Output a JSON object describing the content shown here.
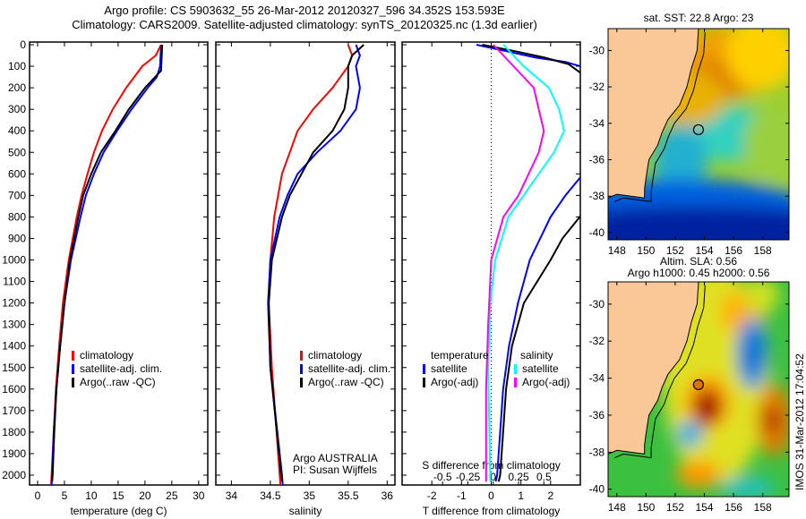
{
  "title_line1": "Argo profile: CS 5903632_55 26-Mar-2012 20120327_596 34.352S 153.593E",
  "title_line2": "Climatology: CARS2009. Satellite-adjusted climatology: synTS_20120325.nc (1.3d earlier)",
  "footer_stamp": "IMOS 31-Mar-2012 17:04:52",
  "chart_data": [
    {
      "type": "line",
      "id": "temperature",
      "xlabel": "temperature (deg C)",
      "ylabel": "",
      "xlim": [
        -1.5,
        31.7
      ],
      "ylim": [
        2050,
        0
      ],
      "xticks": [
        0,
        5,
        10,
        15,
        20,
        25,
        30
      ],
      "yticks": [
        0,
        100,
        200,
        300,
        400,
        500,
        600,
        700,
        800,
        900,
        1000,
        1100,
        1200,
        1300,
        1400,
        1500,
        1600,
        1700,
        1800,
        1900,
        2000
      ],
      "legend": [
        "climatology",
        "satellite-adj. clim.",
        "Argo(..raw -QC)"
      ],
      "series": [
        {
          "name": "climatology",
          "color": "#ff0000",
          "depth": [
            0,
            50,
            100,
            200,
            300,
            400,
            500,
            600,
            700,
            800,
            1000,
            1200,
            1400,
            1600,
            1800,
            2000,
            2050
          ],
          "values": [
            23,
            22,
            19.5,
            16.5,
            14,
            12,
            10.5,
            9.3,
            8.2,
            7.3,
            5.8,
            4.7,
            4,
            3.4,
            3,
            2.6,
            2.5
          ]
        },
        {
          "name": "satellite-adj. clim.",
          "color": "#0000ff",
          "depth": [
            0,
            100,
            150,
            200,
            300,
            400,
            500,
            600,
            700,
            800,
            1000,
            1200,
            1400,
            1600,
            1800,
            2000,
            2050
          ],
          "values": [
            23,
            22.8,
            22.2,
            20.5,
            17.5,
            14.8,
            12.3,
            10.5,
            9,
            8,
            6.2,
            5,
            4.2,
            3.5,
            3,
            2.7,
            2.6
          ]
        },
        {
          "name": "Argo(..raw -QC)",
          "color": "#000000",
          "depth": [
            0,
            120,
            200,
            300,
            400,
            500,
            600,
            700,
            800,
            1000,
            1200,
            1400,
            1600,
            1800,
            2000,
            2030
          ],
          "values": [
            23.2,
            23,
            20,
            17,
            14.5,
            11.8,
            10,
            8.5,
            7.6,
            6,
            5,
            4.2,
            3.5,
            3.1,
            2.8,
            2.7
          ]
        }
      ]
    },
    {
      "type": "line",
      "id": "salinity",
      "xlabel": "salinity",
      "xlim": [
        33.8,
        36.1
      ],
      "ylim": [
        2050,
        0
      ],
      "xticks": [
        34,
        34.5,
        35,
        35.5,
        36
      ],
      "legend": [
        "climatology",
        "satellite-adj. clim.",
        "Argo(..raw -QC)"
      ],
      "annotation": [
        "Argo AUSTRALIA",
        "PI: Susan Wijffels"
      ],
      "series": [
        {
          "name": "climatology",
          "color": "#ff0000",
          "depth": [
            0,
            50,
            100,
            200,
            300,
            400,
            500,
            600,
            800,
            1000,
            1200,
            1500,
            2000,
            2050
          ],
          "values": [
            35.5,
            35.55,
            35.5,
            35.3,
            35.05,
            34.85,
            34.75,
            34.65,
            34.55,
            34.5,
            34.48,
            34.52,
            34.62,
            34.63
          ]
        },
        {
          "name": "satellite-adj. clim.",
          "color": "#0000ff",
          "depth": [
            0,
            50,
            100,
            200,
            300,
            400,
            500,
            600,
            700,
            800,
            1000,
            1200,
            1500,
            2000,
            2050
          ],
          "values": [
            35.6,
            35.65,
            35.6,
            35.65,
            35.6,
            35.4,
            35.1,
            34.85,
            34.72,
            34.62,
            34.5,
            34.47,
            34.5,
            34.65,
            34.66
          ]
        },
        {
          "name": "Argo(..raw -QC)",
          "color": "#000000",
          "depth": [
            0,
            50,
            100,
            200,
            300,
            400,
            500,
            600,
            700,
            800,
            1000,
            1200,
            1500,
            2000,
            2030
          ],
          "values": [
            35.7,
            35.55,
            35.5,
            35.5,
            35.45,
            35.3,
            35.05,
            34.9,
            34.75,
            34.65,
            34.52,
            34.48,
            34.5,
            34.64,
            34.65
          ]
        }
      ]
    },
    {
      "type": "line",
      "id": "difference",
      "xlabel": "T difference from climatology",
      "x2label": "S difference from climatology",
      "xlim": [
        -3,
        3
      ],
      "x2lim": [
        -0.9,
        0.86
      ],
      "ylim": [
        2050,
        0
      ],
      "xticks": [
        -2,
        -1,
        0,
        1,
        2
      ],
      "x2ticks": [
        -0.5,
        -0.25,
        0,
        0.25,
        0.5
      ],
      "legend_temperature": {
        "heading": "temperature",
        "items": [
          "satellite",
          "Argo(-adj)"
        ]
      },
      "legend_salinity": {
        "heading": "salinity",
        "items": [
          "satellite",
          "Argo(-adj)"
        ]
      },
      "series": [
        {
          "name": "T satellite",
          "axis": "T",
          "color": "#0000ff",
          "depth": [
            0,
            30,
            60,
            80,
            100,
            110
          ],
          "values": [
            -0.5,
            0.5,
            1.5,
            2.5,
            3,
            3.2
          ]
        },
        {
          "name": "T satellite deep",
          "axis": "T",
          "color": "#0000ff",
          "depth": [
            600,
            700,
            800,
            1000,
            1200,
            1400,
            1600,
            1800,
            2000,
            2030
          ],
          "values": [
            3.1,
            2.5,
            2,
            1.3,
            0.9,
            0.6,
            0.4,
            0.3,
            0.2,
            0.15
          ]
        },
        {
          "name": "T Argo",
          "axis": "T",
          "color": "#000000",
          "depth": [
            0,
            30,
            60,
            90,
            140
          ],
          "values": [
            -0.3,
            0.8,
            1.8,
            2.6,
            3.1
          ]
        },
        {
          "name": "T Argo deep",
          "axis": "T",
          "color": "#000000",
          "depth": [
            780,
            900,
            1000,
            1200,
            1400,
            1600,
            1800,
            2000,
            2030
          ],
          "values": [
            3.1,
            2.4,
            2,
            1.1,
            0.7,
            0.5,
            0.4,
            0.3,
            0.25
          ]
        },
        {
          "name": "S satellite",
          "axis": "S",
          "color": "#00ffff",
          "depth": [
            0,
            100,
            200,
            300,
            400,
            500,
            600,
            700,
            800,
            1000,
            1200,
            1500,
            2000,
            2030
          ],
          "values": [
            0.1,
            0.3,
            0.55,
            0.65,
            0.7,
            0.6,
            0.45,
            0.3,
            0.15,
            0.02,
            -0.03,
            -0.05,
            -0.03,
            -0.03
          ]
        },
        {
          "name": "S Argo",
          "axis": "S",
          "color": "#ff00ff",
          "depth": [
            0,
            100,
            200,
            300,
            400,
            500,
            600,
            700,
            800,
            1000,
            1300,
            1600,
            2000,
            2030
          ],
          "values": [
            0,
            0.2,
            0.4,
            0.45,
            0.5,
            0.45,
            0.35,
            0.25,
            0.1,
            -0.02,
            -0.05,
            -0.07,
            -0.07,
            -0.07
          ]
        }
      ]
    },
    {
      "type": "heatmap",
      "id": "sst_map",
      "title": "sat. SST: 22.8 Argo: 23",
      "xticks": [
        148,
        150,
        152,
        154,
        156,
        158
      ],
      "yticks": [
        -30,
        -32,
        -34,
        -36,
        -38,
        -40
      ],
      "xlim": [
        147.4,
        159.8
      ],
      "ylim": [
        -40.4,
        -28.8
      ]
    },
    {
      "type": "heatmap",
      "id": "sla_map",
      "title": [
        "Altim. SLA: 0.56",
        "Argo h1000: 0.45 h2000: 0.56"
      ],
      "xticks": [
        148,
        150,
        152,
        154,
        156,
        158
      ],
      "yticks": [
        -30,
        -32,
        -34,
        -36,
        -38,
        -40
      ],
      "xlim": [
        147.4,
        159.8
      ],
      "ylim": [
        -40.4,
        -28.8
      ]
    }
  ]
}
